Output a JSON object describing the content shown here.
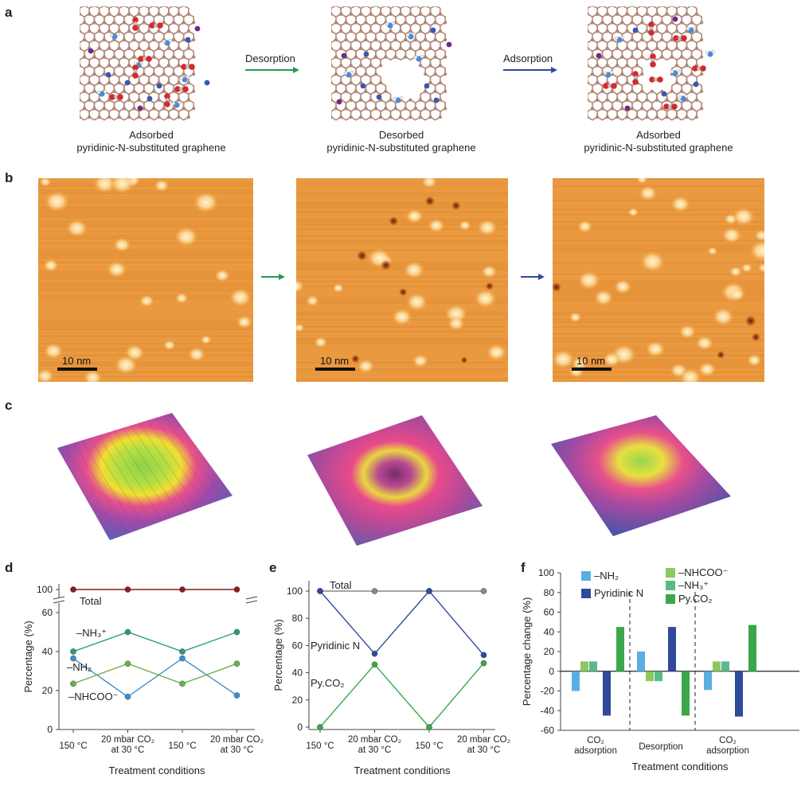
{
  "panel_labels": {
    "a": "a",
    "b": "b",
    "c": "c",
    "d": "d",
    "e": "e",
    "f": "f"
  },
  "panel_a": {
    "captions": [
      {
        "line1": "Adsorbed",
        "line2": "pyridinic-N-substituted graphene"
      },
      {
        "line1": "Desorbed",
        "line2": "pyridinic-N-substituted graphene"
      },
      {
        "line1": "Adsorbed",
        "line2": "pyridinic-N-substituted graphene"
      }
    ],
    "arrows": [
      {
        "label": "Desorption",
        "color": "#2a9a4e"
      },
      {
        "label": "Adsorption",
        "color": "#2f4aa0"
      }
    ],
    "colors": {
      "carbon": "#b08878",
      "nitrogen": "#3a56b0",
      "oxygen": "#d32a2a",
      "hydrogen": "#e8e8e8",
      "purple": "#6a2d86"
    }
  },
  "panel_b": {
    "scale_bar": "10 nm",
    "arrow_colors": [
      "#2a9a4e",
      "#2f4aa0"
    ]
  },
  "chart_data": [
    {
      "panel": "d",
      "type": "line",
      "xlabel": "Treatment conditions",
      "ylabel": "Percentage (%)",
      "categories": [
        "150 °C",
        "20 mbar CO2 at 30 °C",
        "150 °C",
        "20 mbar CO2 at 30 °C"
      ],
      "category_lines": [
        [
          "150 °C"
        ],
        [
          "20 mbar CO₂",
          "at 30 °C"
        ],
        [
          "150 °C"
        ],
        [
          "20 mbar CO₂",
          "at 30 °C"
        ]
      ],
      "yticks": [
        "0",
        "20",
        "40",
        "60",
        "100"
      ],
      "axis_break": true,
      "series": [
        {
          "name": "Total",
          "label": "Total",
          "color": "#8b1a1a",
          "values": [
            100,
            100,
            100,
            100
          ]
        },
        {
          "name": "-NH3+",
          "label": "–NH₃⁺",
          "color": "#2b9a84",
          "values": [
            40,
            50,
            40,
            50
          ]
        },
        {
          "name": "-NH2",
          "label": "–NH₂",
          "color": "#3a8fd0",
          "values": [
            36.5,
            16.8,
            36.5,
            17.5
          ]
        },
        {
          "name": "-NHCOO-",
          "label": "–NHCOO⁻",
          "color": "#6ab04c",
          "values": [
            23.5,
            33.8,
            23.5,
            33.8
          ]
        }
      ]
    },
    {
      "panel": "e",
      "type": "line",
      "xlabel": "Treatment conditions",
      "ylabel": "Percentage (%)",
      "categories": [
        "150 °C",
        "20 mbar CO2 at 30 °C",
        "150 °C",
        "20 mbar CO2 at 30 °C"
      ],
      "category_lines": [
        [
          "150 °C"
        ],
        [
          "20 mbar CO₂",
          "at 30 °C"
        ],
        [
          "150 °C"
        ],
        [
          "20 mbar CO₂",
          "at 30 °C"
        ]
      ],
      "ylim": [
        0,
        100
      ],
      "yticks": [
        "0",
        "20",
        "40",
        "60",
        "80",
        "100"
      ],
      "series": [
        {
          "name": "Total",
          "label": "Total",
          "color": "#888888",
          "values": [
            100,
            100,
            100,
            100
          ]
        },
        {
          "name": "Pyridinic N",
          "label": "Pyridinic N",
          "color": "#2f4a9a",
          "values": [
            100,
            54,
            100,
            53
          ]
        },
        {
          "name": "Py.CO2",
          "label": "Py.CO₂",
          "color": "#3aa84a",
          "values": [
            0,
            46,
            0,
            47
          ]
        }
      ]
    },
    {
      "panel": "f",
      "type": "bar",
      "xlabel": "Treatment conditions",
      "ylabel": "Percentage change (%)",
      "categories": [
        "CO2 adsorption",
        "Desorption",
        "CO2 adsorption"
      ],
      "category_lines": [
        [
          "CO₂",
          "adsorption"
        ],
        [
          "Desorption"
        ],
        [
          "CO₂",
          "adsorption"
        ]
      ],
      "ylim": [
        -60,
        100
      ],
      "yticks": [
        "-60",
        "-40",
        "-20",
        "0",
        "20",
        "40",
        "60",
        "80",
        "100"
      ],
      "series": [
        {
          "name": "-NH2",
          "label": "–NH₂",
          "color": "#5aaee0",
          "values": [
            -20,
            20,
            -19
          ]
        },
        {
          "name": "-NHCOO-",
          "label": "–NHCOO⁻",
          "color": "#8cc860",
          "values": [
            10,
            -10,
            10
          ]
        },
        {
          "name": "-NH3+",
          "label": "–NH₃⁺",
          "color": "#5cba8a",
          "values": [
            10,
            -10,
            10
          ]
        },
        {
          "name": "Pyridinic N",
          "label": "Pyridinic N",
          "color": "#2f4a9a",
          "values": [
            -45,
            45,
            -46
          ]
        },
        {
          "name": "Py.CO2",
          "label": "Py.CO₂",
          "color": "#3aa84a",
          "values": [
            45,
            -45,
            47
          ]
        }
      ]
    }
  ]
}
